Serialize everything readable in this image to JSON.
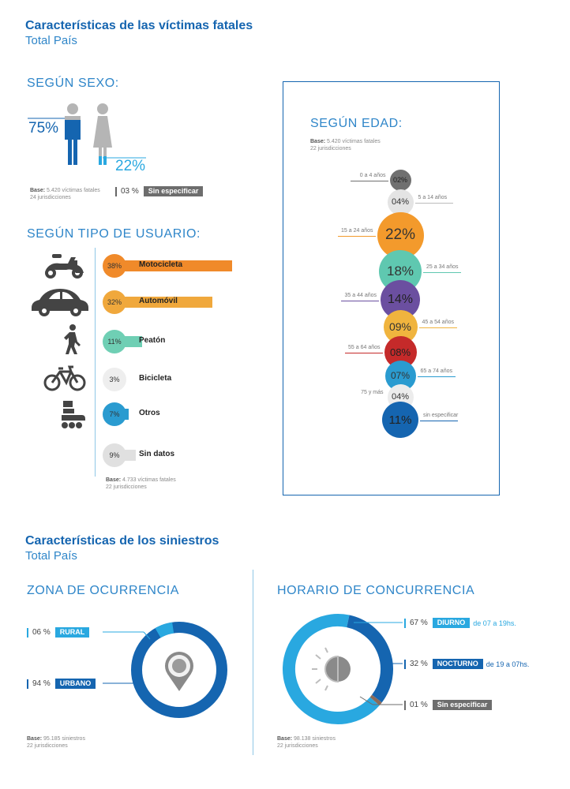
{
  "victims": {
    "title": "Características de las víctimas fatales",
    "subtitle": "Total País"
  },
  "sexo": {
    "heading": "SEGÚN SEXO:",
    "male_pct": "75%",
    "female_pct": "22%",
    "male_value": 75,
    "female_value": 22,
    "base_label": "Base:",
    "base_text": "5.420 víctimas fatales",
    "base_sub": "24 jurisdicciones",
    "unspec_pct": "03 %",
    "unspec_label": "Sin especificar",
    "colors": {
      "male": "#1565b0",
      "female": "#29a8e0",
      "figure": "#b5b5b5"
    }
  },
  "usuario": {
    "heading": "SEGÚN TIPO DE USUARIO:",
    "items": [
      {
        "icon": "motorcycle-icon",
        "pct": "38%",
        "value": 38,
        "label": "Motocicleta",
        "color": "#f08a2a"
      },
      {
        "icon": "car-icon",
        "pct": "32%",
        "value": 32,
        "label": "Automóvil",
        "color": "#f0a83c"
      },
      {
        "icon": "pedestrian-icon",
        "pct": "11%",
        "value": 11,
        "label": "Peatón",
        "color": "#6fcfb4"
      },
      {
        "icon": "bicycle-icon",
        "pct": "3%",
        "value": 3,
        "label": "Bicicleta",
        "color": "#eeeeee"
      },
      {
        "icon": "rollerskate-icon",
        "pct": "7%",
        "value": 7,
        "label": "Otros",
        "color": "#2a9bd0"
      },
      {
        "icon": "",
        "pct": "9%",
        "value": 9,
        "label": "Sin datos",
        "color": "#e0e0e0"
      }
    ],
    "base_label": "Base:",
    "base_text": "4.733 víctimas fatales",
    "base_sub": "22 jurisdicciones"
  },
  "edad": {
    "heading": "SEGÚN EDAD:",
    "base_label": "Base:",
    "base_text": "5.420 víctimas fatales",
    "base_sub": "22 jurisdicciones",
    "items": [
      {
        "label": "0 a 4 años",
        "pct": "02%",
        "value": 2,
        "color": "#707070",
        "side": "left"
      },
      {
        "label": "5 a 14 años",
        "pct": "04%",
        "value": 4,
        "color": "#e4e4e4",
        "side": "right"
      },
      {
        "label": "15 a 24 años",
        "pct": "22%",
        "value": 22,
        "color": "#f39a2c",
        "side": "left"
      },
      {
        "label": "25 a 34 años",
        "pct": "18%",
        "value": 18,
        "color": "#5fc8b0",
        "side": "right"
      },
      {
        "label": "35 a 44 años",
        "pct": "14%",
        "value": 14,
        "color": "#6b4fa0",
        "side": "left"
      },
      {
        "label": "45 a 54 años",
        "pct": "09%",
        "value": 9,
        "color": "#f0b43e",
        "side": "right"
      },
      {
        "label": "55 a 64 años",
        "pct": "08%",
        "value": 8,
        "color": "#c52a2a",
        "side": "left"
      },
      {
        "label": "65 a 74 años",
        "pct": "07%",
        "value": 7,
        "color": "#2a9bd0",
        "side": "right"
      },
      {
        "label": "75 y más",
        "pct": "04%",
        "value": 4,
        "color": "#ececec",
        "side": "left"
      },
      {
        "label": "sin especificar",
        "pct": "11%",
        "value": 11,
        "color": "#1565b0",
        "side": "right"
      }
    ]
  },
  "siniestros": {
    "title": "Características de los siniestros",
    "subtitle": "Total País"
  },
  "zona": {
    "heading": "ZONA DE OCURRENCIA",
    "rural_pct": "06 %",
    "rural_label": "RURAL",
    "rural_value": 6,
    "urbano_pct": "94 %",
    "urbano_label": "URBANO",
    "urbano_value": 94,
    "base_label": "Base:",
    "base_text": "95.185 siniestros",
    "base_sub": "22 jurisdicciones",
    "colors": {
      "rural": "#29a8e0",
      "urbano": "#1565b0",
      "pin": "#8a8a8a"
    }
  },
  "horario": {
    "heading": "HORARIO DE CONCURRENCIA",
    "diurno_pct": "67 %",
    "diurno_label": "DIURNO",
    "diurno_range": "de 07 a 19hs.",
    "diurno_value": 67,
    "nocturno_pct": "32 %",
    "nocturno_label": "NOCTURNO",
    "nocturno_range": "de 19 a 07hs.",
    "nocturno_value": 32,
    "unspec_pct": "01 %",
    "unspec_label": "Sin especificar",
    "unspec_value": 1,
    "base_label": "Base:",
    "base_text": "98.138 siniestros",
    "base_sub": "22 jurisdicciones",
    "colors": {
      "diurno": "#29a8e0",
      "nocturno": "#1565b0",
      "unspec": "#8a6a5a",
      "gray": "#6d6d6d"
    }
  },
  "chart_data": [
    {
      "type": "bar",
      "title": "SEGÚN SEXO:",
      "categories": [
        "Hombres",
        "Mujeres",
        "Sin especificar"
      ],
      "values": [
        75,
        22,
        3
      ]
    },
    {
      "type": "bar",
      "title": "SEGÚN TIPO DE USUARIO:",
      "categories": [
        "Motocicleta",
        "Automóvil",
        "Peatón",
        "Bicicleta",
        "Otros",
        "Sin datos"
      ],
      "values": [
        38,
        32,
        11,
        3,
        7,
        9
      ]
    },
    {
      "type": "scatter",
      "title": "SEGÚN EDAD:",
      "categories": [
        "0 a 4 años",
        "5 a 14 años",
        "15 a 24 años",
        "25 a 34 años",
        "35 a 44 años",
        "45 a 54 años",
        "55 a 64 años",
        "65 a 74 años",
        "75 y más",
        "sin especificar"
      ],
      "values": [
        2,
        4,
        22,
        18,
        14,
        9,
        8,
        7,
        4,
        11
      ]
    },
    {
      "type": "pie",
      "title": "ZONA DE OCURRENCIA",
      "categories": [
        "RURAL",
        "URBANO"
      ],
      "values": [
        6,
        94
      ]
    },
    {
      "type": "pie",
      "title": "HORARIO DE CONCURRENCIA",
      "categories": [
        "DIURNO",
        "NOCTURNO",
        "Sin especificar"
      ],
      "values": [
        67,
        32,
        1
      ]
    }
  ]
}
